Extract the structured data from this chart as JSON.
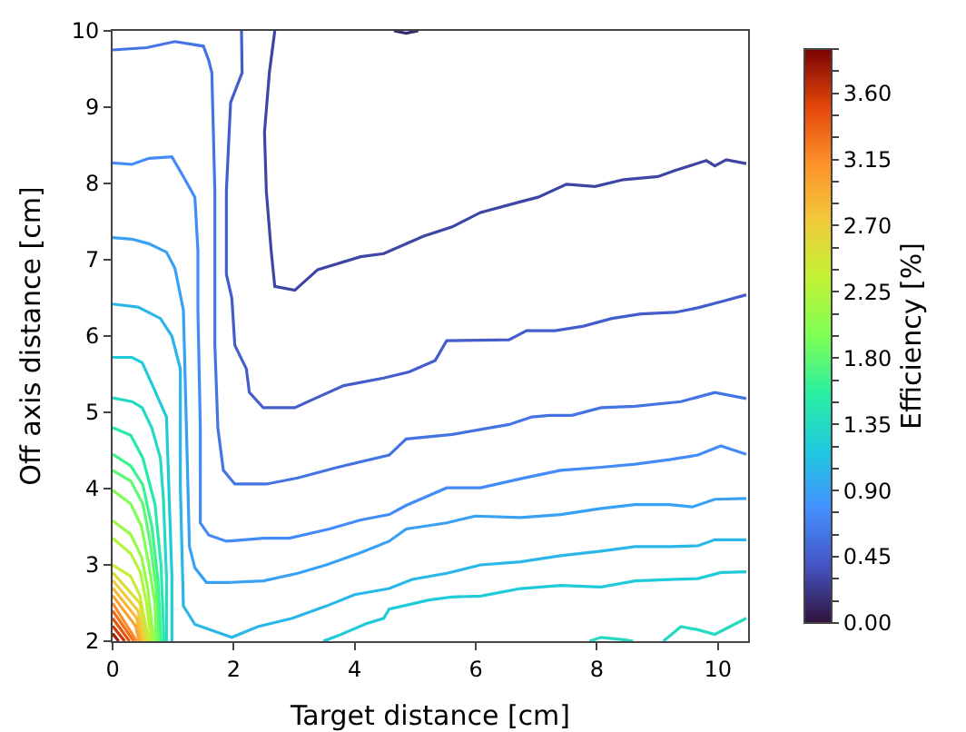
{
  "chart_data": {
    "type": "line",
    "xlabel": "Target distance [cm]",
    "ylabel": "Off axis distance [cm]",
    "clabel": "Efficiency [%]",
    "marker": "none",
    "series": [
      {
        "color": "#382b70",
        "x": [
          4.65,
          4.85,
          5.05
        ],
        "values": [
          10,
          9.97,
          10
        ]
      },
      {
        "color": "#3f45a4",
        "x": [
          2.68,
          2.59,
          2.51,
          2.54,
          2.62,
          2.68,
          3.01,
          3.39,
          4.1,
          4.48,
          5.14,
          5.61,
          6.08,
          6.74,
          7.03,
          7.5,
          7.97,
          8.44,
          9.01,
          9.29,
          9.81,
          9.95,
          10.14,
          10.47
        ],
        "values": [
          10,
          9.45,
          8.67,
          7.9,
          7.12,
          6.65,
          6.6,
          6.87,
          7.04,
          7.08,
          7.31,
          7.43,
          7.62,
          7.76,
          7.82,
          7.99,
          7.96,
          8.05,
          8.09,
          8.17,
          8.3,
          8.23,
          8.31,
          8.26
        ]
      },
      {
        "color": "#445dcd",
        "x": [
          2.13,
          2.14,
          1.95,
          1.88,
          1.88,
          1.97,
          2.02,
          2.21,
          2.26,
          2.49,
          3.01,
          3.34,
          3.82,
          4.48,
          4.9,
          5.33,
          5.52,
          6.55,
          6.84,
          7.31,
          7.78,
          8.25,
          8.73,
          9.29,
          9.67,
          10.05,
          10.47
        ],
        "values": [
          10,
          9.45,
          9.06,
          7.9,
          6.81,
          6.5,
          5.88,
          5.57,
          5.26,
          5.06,
          5.06,
          5.18,
          5.35,
          5.45,
          5.53,
          5.68,
          5.94,
          5.95,
          6.07,
          6.07,
          6.13,
          6.23,
          6.29,
          6.31,
          6.37,
          6.45,
          6.54
        ]
      },
      {
        "color": "#4474e3",
        "x": [
          0,
          0.56,
          1.03,
          1.5,
          1.59,
          1.64,
          1.69,
          1.69,
          1.74,
          1.83,
          2.02,
          2.54,
          3.06,
          3.72,
          4.57,
          4.85,
          5.61,
          6.55,
          6.93,
          7.22,
          7.59,
          8.07,
          8.63,
          9.39,
          9.95,
          10.47
        ],
        "values": [
          9.75,
          9.78,
          9.86,
          9.8,
          9.61,
          9.45,
          7.9,
          5.88,
          4.79,
          4.24,
          4.06,
          4.06,
          4.14,
          4.28,
          4.44,
          4.65,
          4.71,
          4.84,
          4.94,
          4.96,
          4.96,
          5.06,
          5.08,
          5.14,
          5.26,
          5.18
        ]
      },
      {
        "color": "#448bfa",
        "x": [
          0,
          0.32,
          0.6,
          0.98,
          1.17,
          1.36,
          1.41,
          1.41,
          1.45,
          1.45,
          1.59,
          1.88,
          2.49,
          2.92,
          3.58,
          4.1,
          4.57,
          4.85,
          5.52,
          6.08,
          6.74,
          7.4,
          8.07,
          8.63,
          9.2,
          9.67,
          10.05,
          10.47
        ],
        "values": [
          8.27,
          8.25,
          8.33,
          8.35,
          8.09,
          7.82,
          7.12,
          6.34,
          4.79,
          3.55,
          3.39,
          3.31,
          3.35,
          3.35,
          3.47,
          3.59,
          3.66,
          3.78,
          4.01,
          4.01,
          4.13,
          4.24,
          4.28,
          4.32,
          4.38,
          4.44,
          4.56,
          4.45
        ]
      },
      {
        "color": "#39a1f4",
        "x": [
          0,
          0.32,
          0.6,
          0.89,
          1.03,
          1.17,
          1.22,
          1.27,
          1.36,
          1.55,
          1.93,
          2.49,
          3.06,
          3.53,
          4.1,
          4.57,
          4.85,
          5.52,
          5.99,
          6.74,
          7.4,
          8.07,
          8.63,
          9.2,
          9.58,
          9.95,
          10.47
        ],
        "values": [
          7.29,
          7.27,
          7.21,
          7.1,
          6.89,
          6.34,
          4.79,
          3.24,
          2.96,
          2.77,
          2.77,
          2.79,
          2.89,
          3.0,
          3.16,
          3.31,
          3.47,
          3.55,
          3.64,
          3.62,
          3.66,
          3.74,
          3.79,
          3.79,
          3.76,
          3.86,
          3.87
        ]
      },
      {
        "color": "#2ab7e8",
        "x": [
          0,
          0.42,
          0.79,
          0.98,
          1.12,
          1.12,
          1.17,
          1.36,
          1.83,
          1.97,
          2.4,
          2.97,
          3.53,
          4.0,
          4.57,
          4.95,
          5.52,
          6.08,
          6.74,
          7.4,
          8.07,
          8.63,
          9.2,
          9.67,
          9.95,
          10.47
        ],
        "values": [
          6.42,
          6.38,
          6.23,
          6.0,
          5.57,
          4.01,
          2.46,
          2.22,
          2.09,
          2.05,
          2.19,
          2.3,
          2.46,
          2.61,
          2.69,
          2.81,
          2.89,
          3.0,
          3.04,
          3.12,
          3.18,
          3.24,
          3.24,
          3.25,
          3.33,
          3.33
        ]
      },
      {
        "color": "#20cbd9",
        "x": [
          0,
          0.32,
          0.49,
          0.65,
          0.89,
          0.93,
          0.98,
          0.98
        ],
        "values": [
          5.72,
          5.72,
          5.65,
          5.37,
          4.94,
          4.01,
          2.85,
          2.0
        ]
      },
      {
        "color": "#20cbd9",
        "x": [
          3.48,
          3.72,
          4.19,
          4.48,
          4.57,
          5.23,
          5.61,
          6.08,
          6.74,
          7.4,
          8.07,
          8.63,
          9.29,
          9.67,
          10.05,
          10.47
        ],
        "values": [
          2.0,
          2.07,
          2.23,
          2.3,
          2.42,
          2.54,
          2.58,
          2.59,
          2.69,
          2.73,
          2.71,
          2.79,
          2.81,
          2.82,
          2.9,
          2.91
        ]
      },
      {
        "color": "#24dac2",
        "x": [
          0,
          0.32,
          0.49,
          0.65,
          0.79,
          0.84,
          0.89,
          0.89
        ],
        "values": [
          5.19,
          5.14,
          5.06,
          4.79,
          4.4,
          3.86,
          2.85,
          2.0
        ]
      },
      {
        "color": "#24dac2",
        "x": [
          7.88,
          8.07,
          8.45,
          8.6
        ],
        "values": [
          2.0,
          2.05,
          2.02,
          2.0
        ]
      },
      {
        "color": "#24dac2",
        "x": [
          9.1,
          9.39,
          9.67,
          9.95,
          10.47
        ],
        "values": [
          2.0,
          2.19,
          2.15,
          2.09,
          2.3
        ]
      },
      {
        "color": "#27e9ab",
        "x": [
          0,
          0.3,
          0.5,
          0.7,
          0.8,
          0.85
        ],
        "values": [
          4.8,
          4.7,
          4.4,
          3.8,
          3.0,
          2.0
        ]
      },
      {
        "color": "#3df390",
        "x": [
          0,
          0.3,
          0.5,
          0.65,
          0.75,
          0.8
        ],
        "values": [
          4.45,
          4.3,
          4.05,
          3.5,
          2.8,
          2.0
        ]
      },
      {
        "color": "#5df973",
        "x": [
          0,
          0.3,
          0.5,
          0.62,
          0.72,
          0.76
        ],
        "values": [
          4.24,
          4.1,
          3.8,
          3.3,
          2.7,
          2.0
        ]
      },
      {
        "color": "#7eff55",
        "x": [
          0,
          0.3,
          0.48,
          0.6,
          0.7,
          0.72
        ],
        "values": [
          3.98,
          3.8,
          3.5,
          3.0,
          2.5,
          2.0
        ]
      },
      {
        "color": "#98fa48",
        "x": [
          0,
          0.3,
          0.48,
          0.58,
          0.68
        ],
        "values": [
          3.58,
          3.4,
          3.1,
          2.7,
          2.0
        ]
      },
      {
        "color": "#b2f63c",
        "x": [
          0,
          0.3,
          0.46,
          0.56,
          0.64
        ],
        "values": [
          3.35,
          3.15,
          2.9,
          2.5,
          2.0
        ]
      },
      {
        "color": "#c8ed35",
        "x": [
          0,
          0.3,
          0.45,
          0.6
        ],
        "values": [
          3.0,
          2.85,
          2.6,
          2.0
        ]
      },
      {
        "color": "#dbdd37",
        "x": [
          0,
          0.45,
          0.56
        ],
        "values": [
          2.9,
          2.5,
          2.0
        ]
      },
      {
        "color": "#edcd3a",
        "x": [
          0,
          0.42,
          0.52
        ],
        "values": [
          2.8,
          2.4,
          2.0
        ]
      },
      {
        "color": "#f5b935",
        "x": [
          0,
          0.4,
          0.48
        ],
        "values": [
          2.7,
          2.3,
          2.0
        ]
      },
      {
        "color": "#faa32f",
        "x": [
          0,
          0.38,
          0.44
        ],
        "values": [
          2.6,
          2.2,
          2.0
        ]
      },
      {
        "color": "#fc8c28",
        "x": [
          0,
          0.4
        ],
        "values": [
          2.5,
          2.0
        ]
      },
      {
        "color": "#f26f1b",
        "x": [
          0,
          0.35
        ],
        "values": [
          2.4,
          2.0
        ]
      },
      {
        "color": "#e8520f",
        "x": [
          0,
          0.28
        ],
        "values": [
          2.3,
          2.0
        ]
      },
      {
        "color": "#cc3708",
        "x": [
          0,
          0.2
        ],
        "values": [
          2.2,
          2.0
        ]
      },
      {
        "color": "#a31d06",
        "x": [
          0,
          0.1
        ],
        "values": [
          2.1,
          2.0
        ]
      }
    ],
    "colors": [
      "#30123b",
      "#4454c4",
      "#4490fe",
      "#1fc8de",
      "#29efa2",
      "#7eff55",
      "#c1f334",
      "#f1ca3a",
      "#fe922a",
      "#e4460a",
      "#7a0403"
    ],
    "xlim": [
      0,
      10.5
    ],
    "xticks": [
      0,
      2,
      4,
      6,
      8,
      10
    ],
    "ylim": [
      2,
      10
    ],
    "yticks": [
      2,
      3,
      4,
      5,
      6,
      7,
      8,
      9,
      10
    ],
    "clim": [
      0,
      3.9
    ],
    "cticks": [
      {
        "value": 0,
        "label": "0.00"
      },
      {
        "value": 0.15,
        "label": null
      },
      {
        "value": 0.3,
        "label": null
      },
      {
        "value": 0.45,
        "label": "0.45"
      },
      {
        "value": 0.6,
        "label": null
      },
      {
        "value": 0.75,
        "label": null
      },
      {
        "value": 0.9,
        "label": "0.90"
      },
      {
        "value": 1.05,
        "label": null
      },
      {
        "value": 1.2,
        "label": null
      },
      {
        "value": 1.35,
        "label": "1.35"
      },
      {
        "value": 1.5,
        "label": null
      },
      {
        "value": 1.65,
        "label": null
      },
      {
        "value": 1.8,
        "label": "1.80"
      },
      {
        "value": 1.95,
        "label": null
      },
      {
        "value": 2.1,
        "label": null
      },
      {
        "value": 2.25,
        "label": "2.25"
      },
      {
        "value": 2.4,
        "label": null
      },
      {
        "value": 2.55,
        "label": null
      },
      {
        "value": 2.7,
        "label": "2.70"
      },
      {
        "value": 2.85,
        "label": null
      },
      {
        "value": 3.0,
        "label": null
      },
      {
        "value": 3.15,
        "label": "3.15"
      },
      {
        "value": 3.3,
        "label": null
      },
      {
        "value": 3.45,
        "label": null
      },
      {
        "value": 3.6,
        "label": "3.60"
      },
      {
        "value": 3.75,
        "label": null
      },
      {
        "value": 3.9,
        "label": null
      }
    ]
  }
}
